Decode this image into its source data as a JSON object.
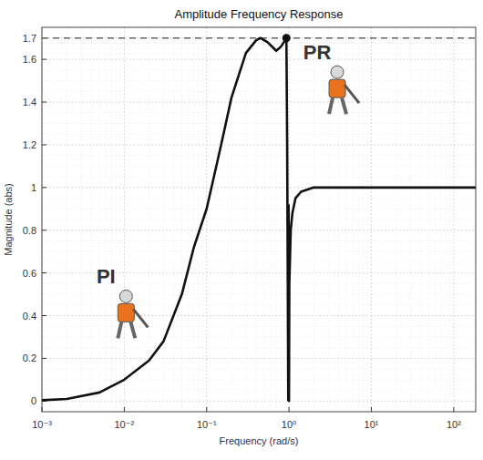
{
  "chart_data": {
    "type": "line",
    "title": "Amplitude Frequency Response",
    "x_label": "Frequency (rad/s)",
    "y_label": "Magnitude (abs)",
    "log": "x",
    "grid": true,
    "xlim": [
      0.001,
      185
    ],
    "ylim": [
      -0.05,
      1.75
    ],
    "xticks": [
      {
        "value": 0.001,
        "label": "10⁻³"
      },
      {
        "value": 0.01,
        "label": "10⁻²"
      },
      {
        "value": 0.1,
        "label": "10⁻¹"
      },
      {
        "value": 1,
        "label": "10⁰"
      },
      {
        "value": 10,
        "label": "10¹"
      },
      {
        "value": 100,
        "label": "10²"
      }
    ],
    "yticks": [
      0,
      0.2,
      0.4,
      0.6,
      0.8,
      1,
      1.2,
      1.4,
      1.6,
      1.7
    ],
    "reference_line": 1.7,
    "peak_marker": {
      "x": 0.93,
      "y": 1.7
    },
    "series": [
      {
        "name": "PI",
        "color": "#111111",
        "line_style": "solid",
        "label_at": [
          0.006,
          0.55
        ],
        "x": [
          0.001,
          0.002,
          0.005,
          0.01,
          0.02,
          0.03,
          0.05,
          0.07,
          0.1,
          0.15,
          0.2,
          0.3,
          0.4,
          0.45,
          0.55,
          0.7,
          0.8,
          0.9,
          0.93,
          0.95,
          0.98
        ],
        "values": [
          0.004,
          0.01,
          0.04,
          0.1,
          0.19,
          0.28,
          0.5,
          0.72,
          0.9,
          1.2,
          1.42,
          1.63,
          1.69,
          1.7,
          1.68,
          1.64,
          1.66,
          1.69,
          1.7,
          1.2,
          0
        ]
      },
      {
        "name": "PR",
        "color": "#111111",
        "line_style": "solid",
        "label_at": [
          2.2,
          1.6
        ],
        "x": [
          0.99,
          1.0,
          1.01,
          1.05,
          1.1,
          1.2,
          1.4,
          2,
          5,
          10,
          100,
          185
        ],
        "values": [
          0.92,
          0,
          0.55,
          0.8,
          0.88,
          0.95,
          0.98,
          1,
          1,
          1,
          1,
          1
        ]
      }
    ]
  }
}
